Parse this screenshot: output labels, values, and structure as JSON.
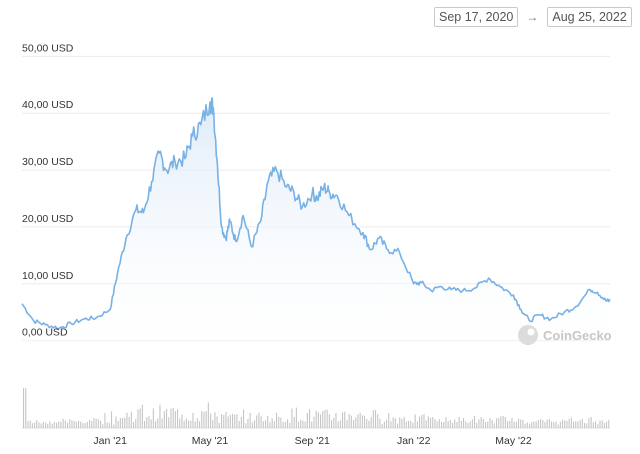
{
  "date_range": {
    "from": "Sep 17, 2020",
    "to": "Aug 25, 2022",
    "arrow": "→"
  },
  "watermark": "CoinGecko",
  "colors": {
    "line": "#78b1e6",
    "area_top": "#dbe9f8",
    "volume": "#c5c5c5",
    "grid": "#ececec"
  },
  "chart_data": {
    "type": "area",
    "title": "",
    "xlabel": "",
    "ylabel": "",
    "y_tick_labels": [
      "0,00 USD",
      "10,00 USD",
      "20,00 USD",
      "30,00 USD",
      "40,00 USD",
      "50,00 USD"
    ],
    "y_ticks": [
      0,
      10,
      20,
      30,
      40,
      50
    ],
    "ylim": [
      -2,
      52
    ],
    "x_tick_labels": [
      "Jan '21",
      "May '21",
      "Sep '21",
      "Jan '22",
      "May '22"
    ],
    "x_ticks": [
      "2021-01-01",
      "2021-05-01",
      "2021-09-01",
      "2022-01-01",
      "2022-05-01"
    ],
    "xlim": [
      "2020-09-17",
      "2022-08-25"
    ],
    "grid": true,
    "series": [
      {
        "x": [
          "2020-09-17",
          "2020-10-01",
          "2020-10-15",
          "2020-11-01",
          "2020-11-15",
          "2020-12-01",
          "2020-12-15",
          "2021-01-01",
          "2021-01-10",
          "2021-01-20",
          "2021-02-01",
          "2021-02-10",
          "2021-02-20",
          "2021-03-01",
          "2021-03-10",
          "2021-03-20",
          "2021-04-01",
          "2021-04-10",
          "2021-04-20",
          "2021-05-01",
          "2021-05-05",
          "2021-05-10",
          "2021-05-15",
          "2021-05-20",
          "2021-05-25",
          "2021-06-01",
          "2021-06-10",
          "2021-06-20",
          "2021-07-01",
          "2021-07-10",
          "2021-07-20",
          "2021-08-01",
          "2021-08-10",
          "2021-08-20",
          "2021-09-01",
          "2021-09-07",
          "2021-09-15",
          "2021-09-22",
          "2021-10-01",
          "2021-10-15",
          "2021-11-01",
          "2021-11-10",
          "2021-11-20",
          "2021-12-01",
          "2021-12-15",
          "2022-01-01",
          "2022-01-10",
          "2022-01-22",
          "2022-02-01",
          "2022-02-15",
          "2022-03-01",
          "2022-03-15",
          "2022-04-01",
          "2022-04-15",
          "2022-05-01",
          "2022-05-10",
          "2022-05-20",
          "2022-06-01",
          "2022-06-15",
          "2022-07-01",
          "2022-07-15",
          "2022-08-01",
          "2022-08-10",
          "2022-08-20",
          "2022-08-25"
        ],
        "values": [
          6.5,
          3.5,
          2.8,
          2.2,
          3.0,
          3.8,
          4.0,
          5.5,
          12.0,
          18.0,
          23.0,
          22.5,
          28.0,
          33.0,
          30.0,
          31.5,
          32.0,
          36.0,
          38.0,
          42.0,
          41.0,
          31.0,
          20.0,
          18.0,
          21.0,
          17.5,
          22.0,
          16.5,
          21.0,
          28.0,
          30.0,
          27.0,
          26.0,
          23.5,
          26.0,
          25.0,
          27.0,
          26.0,
          25.5,
          22.0,
          19.0,
          16.0,
          18.0,
          16.0,
          15.5,
          10.0,
          10.2,
          8.8,
          9.5,
          9.0,
          8.8,
          9.2,
          11.0,
          9.5,
          8.0,
          5.5,
          3.5,
          4.5,
          3.8,
          5.0,
          6.0,
          9.0,
          8.5,
          7.0,
          7.0
        ]
      }
    ]
  }
}
